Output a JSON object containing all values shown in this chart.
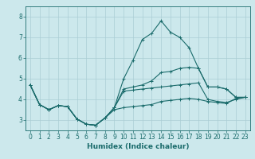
{
  "xlabel": "Humidex (Indice chaleur)",
  "bg_color": "#cce8ec",
  "grid_color": "#aacdd4",
  "line_color": "#1a6b6b",
  "xlim": [
    -0.5,
    23.5
  ],
  "ylim": [
    2.5,
    8.5
  ],
  "yticks": [
    3,
    4,
    5,
    6,
    7,
    8
  ],
  "xticks": [
    0,
    1,
    2,
    3,
    4,
    5,
    6,
    7,
    8,
    9,
    10,
    11,
    12,
    13,
    14,
    15,
    16,
    17,
    18,
    19,
    20,
    21,
    22,
    23
  ],
  "curves": [
    {
      "x": [
        0,
        1,
        2,
        3,
        4,
        5,
        6,
        7,
        8,
        9,
        10,
        11,
        12,
        13,
        14,
        15,
        16,
        17,
        18,
        19,
        20,
        21,
        22,
        23
      ],
      "y": [
        4.7,
        3.75,
        3.5,
        3.7,
        3.65,
        3.05,
        2.8,
        2.75,
        3.1,
        3.6,
        5.0,
        5.9,
        6.9,
        7.2,
        7.8,
        7.25,
        7.0,
        6.5,
        5.5,
        4.6,
        4.6,
        4.5,
        4.1,
        4.1
      ]
    },
    {
      "x": [
        0,
        1,
        2,
        3,
        4,
        5,
        6,
        7,
        8,
        9,
        10,
        11,
        12,
        13,
        14,
        15,
        16,
        17,
        18,
        19,
        20,
        21,
        22,
        23
      ],
      "y": [
        4.7,
        3.75,
        3.5,
        3.7,
        3.65,
        3.05,
        2.8,
        2.75,
        3.1,
        3.6,
        4.5,
        4.6,
        4.7,
        4.9,
        5.3,
        5.35,
        5.5,
        5.55,
        5.5,
        4.6,
        4.6,
        4.5,
        4.1,
        4.1
      ]
    },
    {
      "x": [
        0,
        1,
        2,
        3,
        4,
        5,
        6,
        7,
        8,
        9,
        10,
        11,
        12,
        13,
        14,
        15,
        16,
        17,
        18,
        19,
        20,
        21,
        22,
        23
      ],
      "y": [
        4.7,
        3.75,
        3.5,
        3.7,
        3.65,
        3.05,
        2.8,
        2.75,
        3.1,
        3.6,
        4.4,
        4.45,
        4.5,
        4.55,
        4.6,
        4.65,
        4.7,
        4.75,
        4.8,
        4.0,
        3.9,
        3.85,
        4.0,
        4.1
      ]
    },
    {
      "x": [
        0,
        1,
        2,
        3,
        4,
        5,
        6,
        7,
        8,
        9,
        10,
        11,
        12,
        13,
        14,
        15,
        16,
        17,
        18,
        19,
        20,
        21,
        22,
        23
      ],
      "y": [
        4.7,
        3.75,
        3.5,
        3.7,
        3.65,
        3.05,
        2.8,
        2.75,
        3.1,
        3.5,
        3.6,
        3.65,
        3.7,
        3.75,
        3.9,
        3.95,
        4.0,
        4.05,
        4.0,
        3.9,
        3.85,
        3.8,
        4.05,
        4.1
      ]
    }
  ]
}
